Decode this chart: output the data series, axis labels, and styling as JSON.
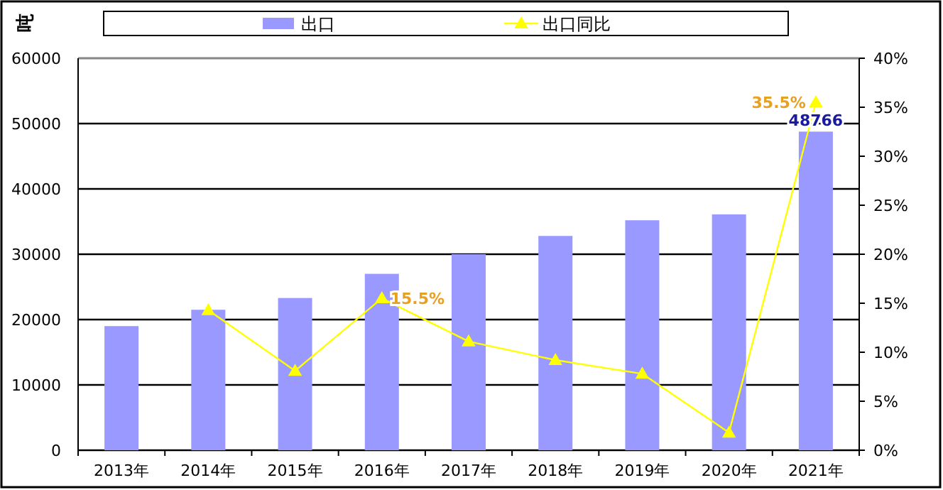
{
  "chart_data": {
    "type": "bar",
    "categories": [
      "2013年",
      "2014年",
      "2015年",
      "2016年",
      "2017年",
      "2018年",
      "2019年",
      "2020年",
      "2021年"
    ],
    "ylabel": "吨",
    "series": [
      {
        "name": "出口",
        "color": "#9999ff",
        "values": [
          19000,
          21500,
          23300,
          27000,
          30000,
          32800,
          35200,
          36100,
          48766
        ],
        "value_labels": [
          null,
          null,
          null,
          null,
          null,
          null,
          null,
          null,
          "48766"
        ]
      },
      {
        "name": "出口同比",
        "type": "line",
        "axis": "y2",
        "color": "#ffff00",
        "marker": "triangle",
        "values": [
          null,
          14.3,
          8.1,
          15.5,
          11.1,
          9.2,
          7.8,
          1.8,
          35.5
        ],
        "value_labels": [
          null,
          null,
          null,
          "15.5%",
          null,
          null,
          null,
          null,
          "35.5%"
        ]
      }
    ],
    "ylim": [
      0,
      60000
    ],
    "yticks": [
      0,
      10000,
      20000,
      30000,
      40000,
      50000,
      60000
    ],
    "y2lim": [
      0,
      40
    ],
    "y2ticks": [
      {
        "value": 0,
        "label": "0%"
      },
      {
        "value": 5,
        "label": "5%"
      },
      {
        "value": 10,
        "label": "10%"
      },
      {
        "value": 15,
        "label": "15%"
      },
      {
        "value": 20,
        "label": "20%"
      },
      {
        "value": 25,
        "label": "25%"
      },
      {
        "value": 30,
        "label": "30%"
      },
      {
        "value": 35,
        "label": "35%"
      },
      {
        "value": 40,
        "label": "40%"
      }
    ],
    "grid": "y",
    "legend": "top"
  }
}
